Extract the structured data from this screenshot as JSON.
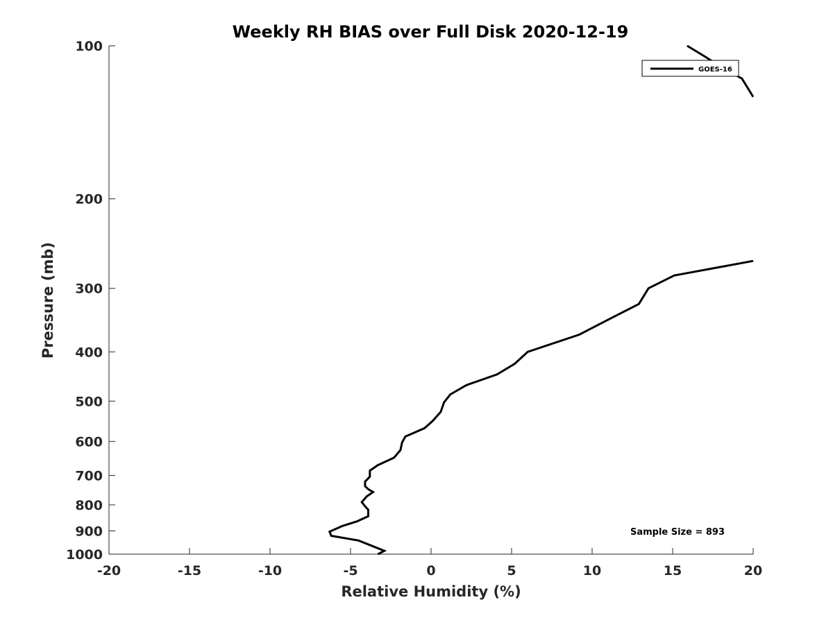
{
  "chart_data": {
    "type": "line",
    "title": "Weekly RH BIAS over Full Disk 2020-12-19",
    "xlabel": "Relative Humidity (%)",
    "ylabel": "Pressure (mb)",
    "xlim": [
      -20,
      20
    ],
    "ylim": [
      100,
      1000
    ],
    "y_scale": "log",
    "y_reversed": true,
    "x_ticks": [
      "-20",
      "-15",
      "-10",
      "-5",
      "0",
      "5",
      "10",
      "15",
      "20"
    ],
    "y_ticks": [
      "100",
      "200",
      "300",
      "400",
      "500",
      "600",
      "700",
      "800",
      "900",
      "1000"
    ],
    "grid": false,
    "legend_position": "top-right",
    "series": [
      {
        "name": "GOES-16",
        "color": "#000000",
        "segments": [
          [
            [
              15.9,
              100
            ],
            [
              17.0,
              105
            ],
            [
              18.2,
              111
            ],
            [
              19.3,
              116
            ],
            [
              20.0,
              126
            ]
          ],
          [
            [
              20.0,
              265
            ],
            [
              15.1,
              283
            ],
            [
              13.5,
              300
            ],
            [
              12.9,
              322
            ],
            [
              10.9,
              347
            ],
            [
              9.2,
              370
            ],
            [
              6.0,
              400
            ],
            [
              5.2,
              422
            ],
            [
              4.1,
              443
            ],
            [
              2.2,
              465
            ],
            [
              1.2,
              485
            ],
            [
              0.8,
              503
            ],
            [
              0.6,
              525
            ],
            [
              0.1,
              547
            ],
            [
              -0.4,
              565
            ],
            [
              -1.6,
              587
            ],
            [
              -1.8,
              603
            ],
            [
              -1.9,
              624
            ],
            [
              -2.3,
              646
            ],
            [
              -3.3,
              668
            ],
            [
              -3.8,
              685
            ],
            [
              -3.8,
              704
            ],
            [
              -4.1,
              720
            ],
            [
              -4.1,
              735
            ],
            [
              -3.9,
              745
            ],
            [
              -3.6,
              755
            ],
            [
              -4.0,
              770
            ],
            [
              -4.3,
              790
            ],
            [
              -4.1,
              805
            ],
            [
              -3.9,
              818
            ],
            [
              -3.9,
              842
            ],
            [
              -4.6,
              862
            ],
            [
              -5.5,
              880
            ],
            [
              -6.3,
              903
            ],
            [
              -6.2,
              920
            ],
            [
              -4.5,
              940
            ],
            [
              -3.6,
              965
            ],
            [
              -2.9,
              985
            ],
            [
              -3.3,
              1000
            ]
          ]
        ]
      }
    ],
    "annotations": [
      "Sample Size = 893"
    ]
  }
}
